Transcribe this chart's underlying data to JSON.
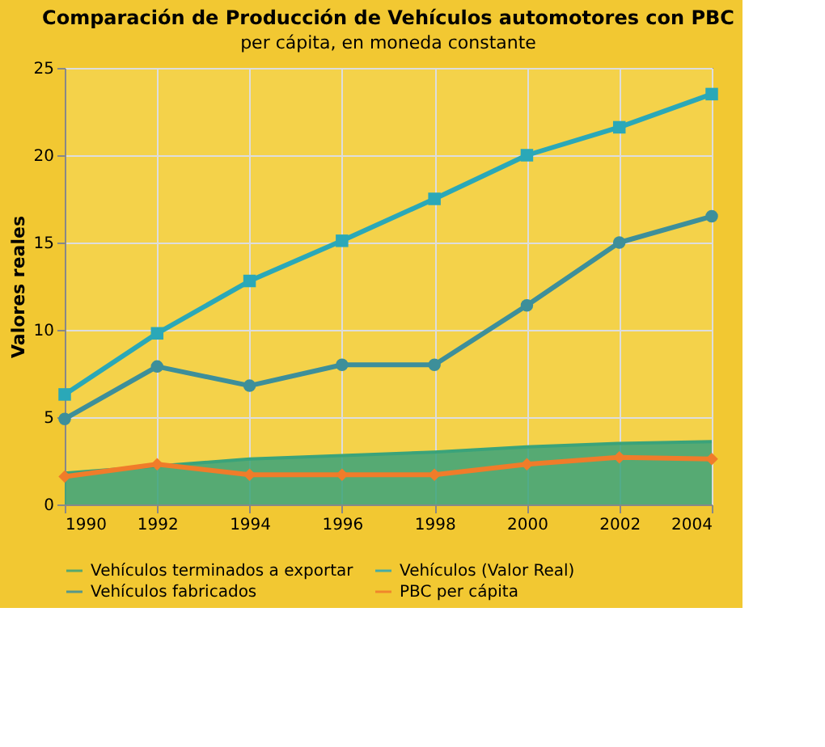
{
  "chart_data": {
    "type": "line",
    "title": "Comparación de Producción de Vehículos automotores con PBC",
    "subtitle": "per cápita, en moneda constante",
    "ylabel": "Valores reales",
    "categories": [
      "1990",
      "1992",
      "1994",
      "1996",
      "1998",
      "2000",
      "2002",
      "2004"
    ],
    "ylim": [
      0,
      25
    ],
    "yticks": [
      0,
      5,
      10,
      15,
      20,
      25
    ],
    "grid": true,
    "legend": "bottom",
    "series": [
      {
        "name": "Vehículos terminados a exportar",
        "type": "area",
        "color": "#3aa37a",
        "values": [
          1.8,
          2.2,
          2.6,
          2.8,
          3.0,
          3.3,
          3.5,
          3.6
        ]
      },
      {
        "name": "Vehículos (Valor Real)",
        "marker": "square",
        "color": "#2aa8b8",
        "values": [
          6.3,
          9.8,
          12.8,
          15.1,
          17.5,
          20.0,
          21.6,
          23.5
        ]
      },
      {
        "name": "Vehículos fabricados",
        "marker": "circle",
        "color": "#3d8f9a",
        "values": [
          4.9,
          7.9,
          6.8,
          8.0,
          8.0,
          11.4,
          15.0,
          16.5
        ]
      },
      {
        "name": "PBC per cápita",
        "marker": "diamond",
        "color": "#f07c2a",
        "values": [
          1.6,
          2.3,
          1.7,
          1.7,
          1.7,
          2.3,
          2.7,
          2.6
        ]
      }
    ]
  }
}
